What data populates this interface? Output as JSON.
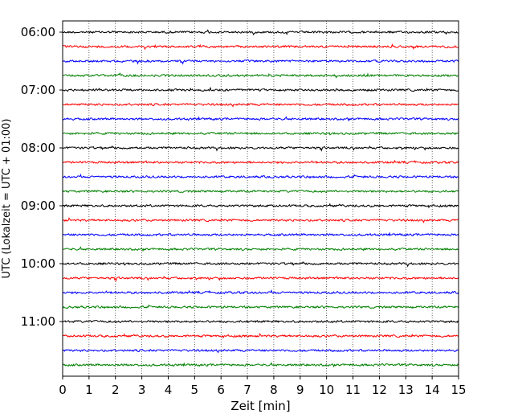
{
  "chart_data": {
    "type": "line",
    "xlabel": "Zeit  [min]",
    "ylabel": "UTC (Lokalzeit = UTC + 01:00)",
    "xlim": [
      0,
      15
    ],
    "x_ticks": [
      "0",
      "1",
      "2",
      "3",
      "4",
      "5",
      "6",
      "7",
      "8",
      "9",
      "10",
      "11",
      "12",
      "13",
      "14",
      "15"
    ],
    "y_ticks": [
      "06:00",
      "07:00",
      "08:00",
      "09:00",
      "10:00",
      "11:00"
    ],
    "grid": "vertical dotted at each minute",
    "trace_interval_minutes": 15,
    "trace_start": "06:00",
    "trace_count": 24,
    "trace_colors": [
      "#000000",
      "#ff0000",
      "#0000ff",
      "#008000"
    ],
    "description_series": "24 helicorder traces of seismic noise, each 15 min long, colors cycle black, red, blue, green"
  }
}
